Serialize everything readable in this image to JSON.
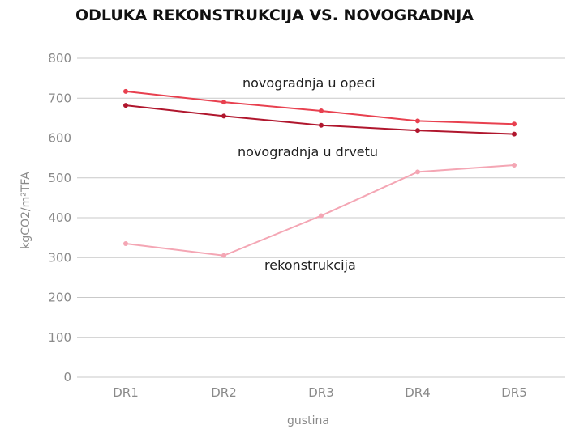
{
  "chart_data": {
    "type": "line",
    "title": "ODLUKA REKONSTRUKCIJA VS. NOVOGRADNJA",
    "xlabel": "gustina",
    "ylabel": "kgCO2/m²TFA",
    "categories": [
      "DR1",
      "DR2",
      "DR3",
      "DR4",
      "DR5"
    ],
    "ylim": [
      0,
      800
    ],
    "yticks": [
      0,
      100,
      200,
      300,
      400,
      500,
      600,
      700,
      800
    ],
    "grid": true,
    "series": [
      {
        "name": "novogradnja u opeci",
        "values": [
          717,
          690,
          668,
          643,
          635
        ],
        "color": "#e8404f"
      },
      {
        "name": "novogradnja u drvetu",
        "values": [
          682,
          655,
          632,
          619,
          610
        ],
        "color": "#b0162d"
      },
      {
        "name": "rekonstrukcija",
        "values": [
          335,
          305,
          405,
          515,
          532
        ],
        "color": "#f4a6b4"
      }
    ]
  }
}
